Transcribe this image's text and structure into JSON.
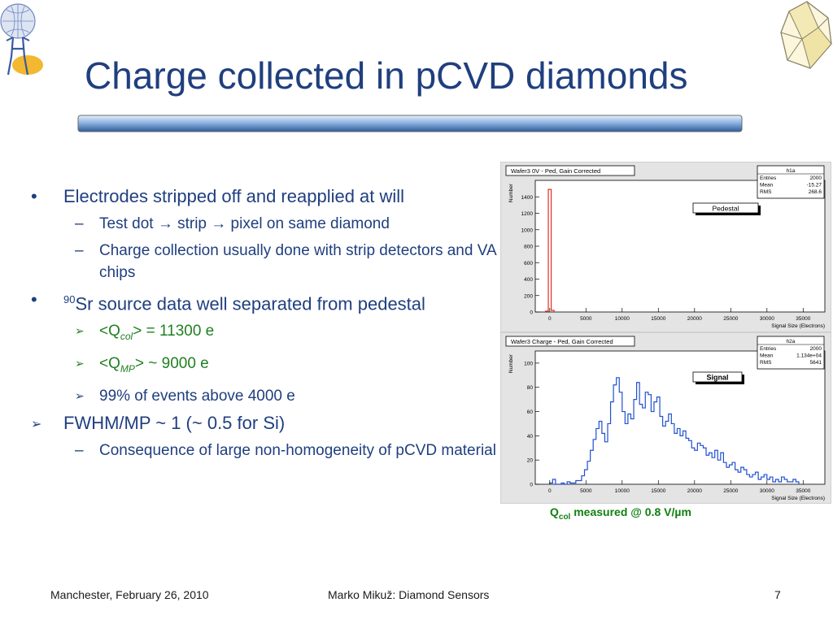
{
  "slide": {
    "title": "Charge collected in pCVD diamonds",
    "bullets": [
      {
        "text": "Electrodes stripped off and reapplied at will",
        "subs": [
          "Test dot → strip → pixel on same diamond",
          "Charge collection usually done with strip detectors and VA chips"
        ]
      },
      {
        "sup": "90",
        "text": "Sr source data well separated from pedestal",
        "subs": [
          {
            "pre": "<Q",
            "sub": "col",
            "post": "> = 11300 e"
          },
          {
            "pre": "<Q",
            "sub": "MP",
            "post": "> ~ 9000 e"
          },
          {
            "text": "99% of events above 4000 e"
          }
        ]
      },
      {
        "text": "FWHM/MP ~ 1 (~ 0.5 for Si)",
        "subs": [
          "Consequence of large non-homogeneity of pCVD material"
        ]
      }
    ],
    "caption": {
      "pre": "Q",
      "sub": "col",
      "post": " measured @ 0.8 V/µm"
    },
    "footer": {
      "left": "Manchester, February 26, 2010",
      "center": "Marko Mikuž: Diamond Sensors",
      "page": "7"
    },
    "colors": {
      "title": "#1f3f7f",
      "bullet_text": "#1f3f7f",
      "green_text": "#218021",
      "pedestal_hist": "#e03020",
      "signal_hist": "#2050d0"
    },
    "icons": [
      "atlas-logo-icon",
      "diamond-crystal-icon",
      "check-arrow-bullet-icon",
      "dash-bullet-icon",
      "round-bullet-icon"
    ]
  },
  "chart_data": [
    {
      "type": "bar",
      "title": "Wafer3 0V - Ped, Gain Corrected",
      "label": "Pedestal",
      "xlabel": "Signal Size (Electrons)",
      "ylabel": "Number",
      "xlim": [
        -2000,
        38000
      ],
      "ylim": [
        0,
        1600
      ],
      "xticks": [
        0,
        5000,
        10000,
        15000,
        20000,
        25000,
        30000,
        35000
      ],
      "yticks": [
        0,
        200,
        400,
        600,
        800,
        1000,
        1200,
        1400
      ],
      "stats": {
        "name": "h1a",
        "rows": [
          [
            "Entries",
            "2000"
          ],
          [
            "Mean",
            "-15.27"
          ],
          [
            "RMS",
            "268.6"
          ]
        ]
      },
      "series": [
        {
          "x": [
            -400,
            0,
            400
          ],
          "values": [
            10,
            1490,
            20
          ]
        }
      ]
    },
    {
      "type": "bar",
      "title": "Wafer3 Charge - Ped, Gain Corrected",
      "label": "Signal",
      "xlabel": "Signal Size (Electrons)",
      "ylabel": "Number",
      "xlim": [
        -2000,
        38000
      ],
      "ylim": [
        0,
        110
      ],
      "xticks": [
        0,
        5000,
        10000,
        15000,
        20000,
        25000,
        30000,
        35000
      ],
      "yticks": [
        0,
        20,
        40,
        60,
        80,
        100
      ],
      "stats": {
        "name": "h2a",
        "rows": [
          [
            "Entries",
            "2000"
          ],
          [
            "Mean",
            "1.134e+04"
          ],
          [
            "RMS",
            "5641"
          ]
        ]
      },
      "series": [
        {
          "binwidth": 400,
          "x_start": 0,
          "values": [
            1,
            4,
            0,
            0,
            1,
            0,
            2,
            1,
            1,
            3,
            3,
            7,
            12,
            19,
            28,
            37,
            46,
            52,
            42,
            35,
            50,
            68,
            82,
            88,
            76,
            60,
            50,
            58,
            54,
            70,
            84,
            66,
            63,
            76,
            74,
            60,
            68,
            72,
            56,
            48,
            52,
            58,
            50,
            42,
            46,
            40,
            44,
            38,
            36,
            30,
            28,
            34,
            32,
            30,
            24,
            26,
            22,
            28,
            20,
            26,
            18,
            14,
            16,
            18,
            12,
            10,
            14,
            12,
            8,
            6,
            8,
            10,
            4,
            6,
            8,
            4,
            6,
            2,
            4,
            2,
            6,
            4,
            2,
            2,
            4,
            2
          ]
        }
      ]
    }
  ]
}
